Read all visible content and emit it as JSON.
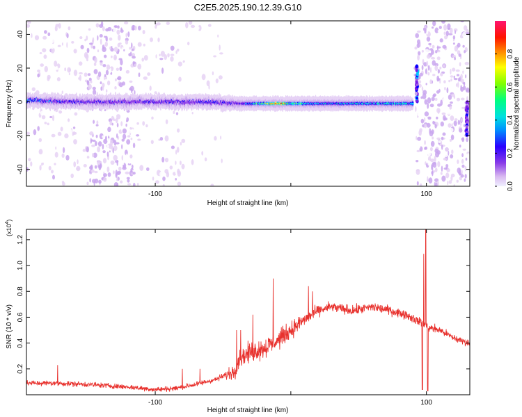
{
  "title": "C2E5.2025.190.12.39.G10",
  "colors": {
    "snr_line": "#e8322e",
    "colormap": [
      "#ffffff",
      "#e6d2f5",
      "#c9a6ee",
      "#9e5ce6",
      "#7a1ee6",
      "#0000ff",
      "#00c8ff",
      "#00ff96",
      "#ffff00",
      "#ff8000",
      "#ff0000",
      "#ff1470"
    ]
  },
  "chart_data": [
    {
      "type": "heatmap",
      "xlabel": "Height of straight line (km)",
      "ylabel": "Frequency (Hz)",
      "xlim": [
        -195,
        132
      ],
      "ylim": [
        -50,
        48
      ],
      "xticks": [
        {
          "v": -100,
          "label": "-100"
        },
        {
          "v": 0,
          "label": ""
        },
        {
          "v": 100,
          "label": "100"
        }
      ],
      "yticks": [
        {
          "v": -40,
          "label": "-40"
        },
        {
          "v": -20,
          "label": "-20"
        },
        {
          "v": 0,
          "label": "0"
        },
        {
          "v": 20,
          "label": "20"
        },
        {
          "v": 40,
          "label": "40"
        }
      ],
      "colorbar": {
        "label": "Normalized spectral amplitude",
        "range": [
          0,
          1
        ],
        "ticks": [
          {
            "v": 0.0,
            "label": "0.0"
          },
          {
            "v": 0.2,
            "label": "0.2"
          },
          {
            "v": 0.4,
            "label": "0.4"
          },
          {
            "v": 0.6,
            "label": "0.6"
          },
          {
            "v": 0.8,
            "label": "0.8"
          }
        ]
      },
      "main_band": {
        "center_hz": [
          [
            -195,
            1
          ],
          [
            -160,
            0
          ],
          [
            -100,
            0
          ],
          [
            -60,
            0
          ],
          [
            -40,
            -1
          ],
          [
            -20,
            -1
          ],
          [
            0,
            -1
          ],
          [
            50,
            -1
          ],
          [
            88,
            -1
          ]
        ],
        "amplitude": [
          [
            -195,
            0.5
          ],
          [
            -160,
            0.45
          ],
          [
            -130,
            0.4
          ],
          [
            -100,
            0.42
          ],
          [
            -60,
            0.45
          ],
          [
            -40,
            0.4
          ],
          [
            -20,
            0.7
          ],
          [
            -10,
            0.85
          ],
          [
            0,
            0.7
          ],
          [
            20,
            0.55
          ],
          [
            88,
            0.6
          ]
        ]
      },
      "scatter_regions": [
        {
          "x": [
            -195,
            -150
          ],
          "density": 0.35
        },
        {
          "x": [
            -150,
            -115
          ],
          "density": 0.95
        },
        {
          "x": [
            -115,
            -80
          ],
          "density": 0.3
        },
        {
          "x": [
            -80,
            -50
          ],
          "density": 0.15
        },
        {
          "x": [
            92,
            131
          ],
          "density": 1.0
        }
      ]
    },
    {
      "type": "line",
      "xlabel": "Height of straight line (km)",
      "ylabel": "SNR (10 * v/v)",
      "exponent_label": "(x10",
      "exponent_sup": "4",
      "exponent_close": ")",
      "xlim": [
        -195,
        132
      ],
      "ylim": [
        0,
        1.28
      ],
      "xticks": [
        {
          "v": -100,
          "label": "-100"
        },
        {
          "v": 0,
          "label": ""
        },
        {
          "v": 100,
          "label": "100"
        }
      ],
      "yticks": [
        {
          "v": 0.2,
          "label": "0.2"
        },
        {
          "v": 0.4,
          "label": "0.4"
        },
        {
          "v": 0.6,
          "label": "0.6"
        },
        {
          "v": 0.8,
          "label": "0.8"
        },
        {
          "v": 1.0,
          "label": "1.0"
        },
        {
          "v": 1.2,
          "label": "1.2"
        }
      ],
      "envelope": [
        [
          -195,
          0.09
        ],
        [
          -175,
          0.09
        ],
        [
          -150,
          0.08
        ],
        [
          -120,
          0.06
        ],
        [
          -100,
          0.04
        ],
        [
          -85,
          0.05
        ],
        [
          -70,
          0.08
        ],
        [
          -55,
          0.12
        ],
        [
          -42,
          0.18
        ],
        [
          -38,
          0.28
        ],
        [
          -30,
          0.33
        ],
        [
          -20,
          0.36
        ],
        [
          -10,
          0.42
        ],
        [
          0,
          0.5
        ],
        [
          10,
          0.58
        ],
        [
          20,
          0.65
        ],
        [
          30,
          0.68
        ],
        [
          45,
          0.65
        ],
        [
          60,
          0.68
        ],
        [
          70,
          0.66
        ],
        [
          85,
          0.62
        ],
        [
          92,
          0.58
        ],
        [
          98,
          0.55
        ],
        [
          102,
          0.52
        ],
        [
          110,
          0.5
        ],
        [
          120,
          0.44
        ],
        [
          131,
          0.4
        ]
      ],
      "noise_amplitude": [
        [
          -195,
          0.03
        ],
        [
          -50,
          0.03
        ],
        [
          -42,
          0.1
        ],
        [
          -20,
          0.12
        ],
        [
          0,
          0.1
        ],
        [
          20,
          0.06
        ],
        [
          90,
          0.05
        ],
        [
          131,
          0.04
        ]
      ],
      "spikes": [
        {
          "x": -172,
          "y": 0.23
        },
        {
          "x": -80,
          "y": 0.2
        },
        {
          "x": -67,
          "y": 0.2
        },
        {
          "x": -40,
          "y": 0.5
        },
        {
          "x": -37,
          "y": 0.5
        },
        {
          "x": -28,
          "y": 0.62
        },
        {
          "x": -13,
          "y": 0.9
        },
        {
          "x": 13,
          "y": 0.84
        },
        {
          "x": 16,
          "y": 0.8
        },
        {
          "x": 98,
          "y": 1.09
        },
        {
          "x": 99.5,
          "y": 1.28
        }
      ],
      "dips": [
        {
          "x": 97,
          "y": 0.04
        },
        {
          "x": 101,
          "y": 0.03
        }
      ]
    }
  ]
}
